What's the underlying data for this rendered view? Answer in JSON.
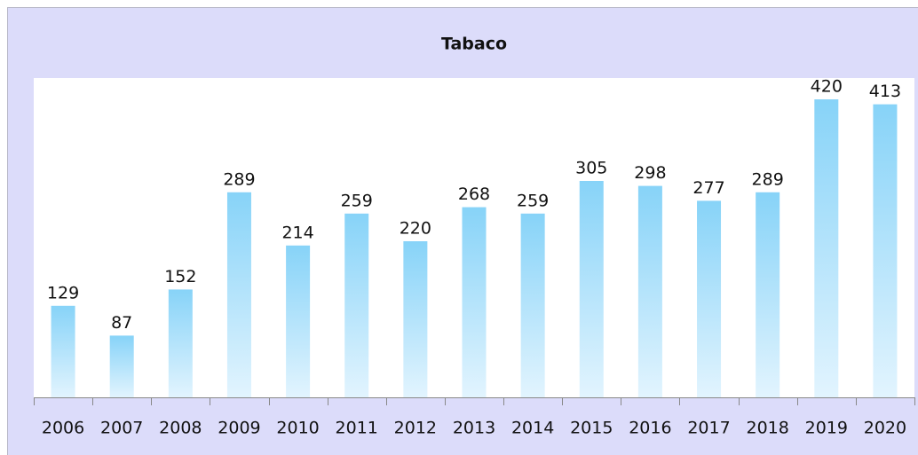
{
  "chart_data": {
    "type": "bar",
    "title": "Tabaco",
    "categories": [
      "2006",
      "2007",
      "2008",
      "2009",
      "2010",
      "2011",
      "2012",
      "2013",
      "2014",
      "2015",
      "2016",
      "2017",
      "2018",
      "2019",
      "2020"
    ],
    "values": [
      129,
      87,
      152,
      289,
      214,
      259,
      220,
      268,
      259,
      305,
      298,
      277,
      289,
      420,
      413
    ],
    "color": "#87d3f8",
    "ylim": [
      0,
      450
    ]
  }
}
